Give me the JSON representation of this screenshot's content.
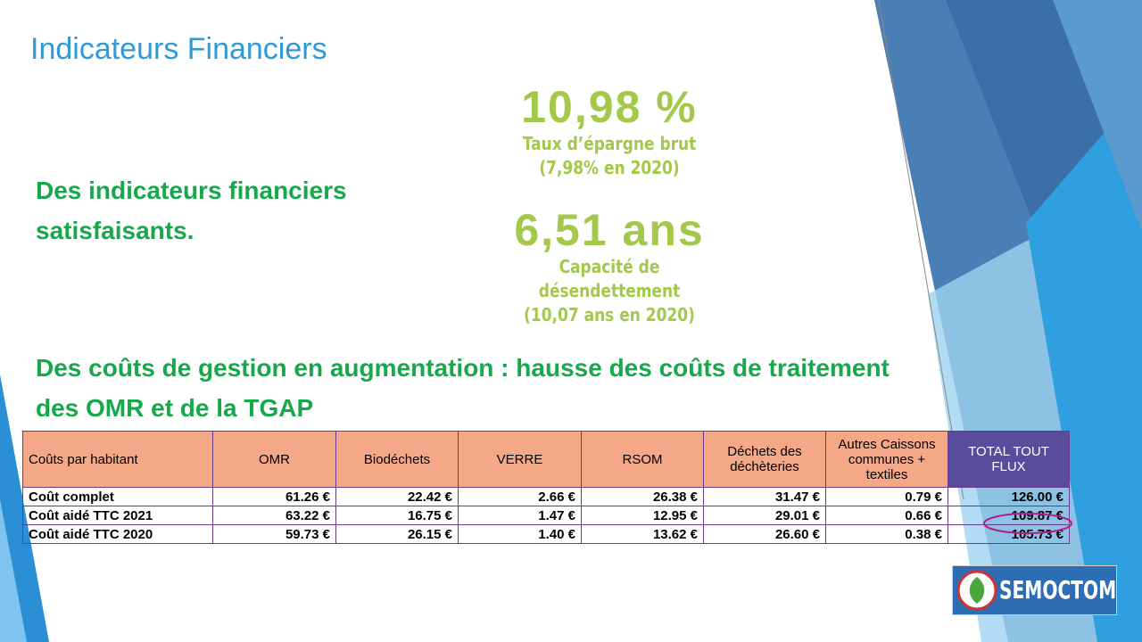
{
  "title": "Indicateurs Financiers",
  "stats": [
    {
      "value": "10,98 %",
      "label": "Taux d’épargne brut",
      "note": "(7,98% en 2020)"
    },
    {
      "value": "6,51 ans",
      "label": "Capacité de désendettement",
      "note": "(10,07 ans en 2020)"
    }
  ],
  "bullets": [
    "Des indicateurs financiers satisfaisants.",
    "Des coûts de gestion en augmentation : hausse des coûts de traitement des OMR et de la TGAP"
  ],
  "table": {
    "header": [
      "Coûts par habitant",
      "OMR",
      "Biodéchets",
      "VERRE",
      "RSOM",
      "Déchets des déchèteries",
      "Autres Caissons communes + textiles",
      "TOTAL TOUT FLUX"
    ],
    "rows": [
      [
        "Coût complet",
        "61.26 €",
        "22.42 €",
        "2.66 €",
        "26.38 €",
        "31.47 €",
        "0.79 €",
        "126.00 €"
      ],
      [
        "Coût aidé TTC 2021",
        "63.22 €",
        "16.75 €",
        "1.47 €",
        "12.95 €",
        "29.01 €",
        "0.66 €",
        "109.87 €"
      ],
      [
        "Coût aidé TTC 2020",
        "59.73 €",
        "26.15 €",
        "1.40 €",
        "13.62 €",
        "26.60 €",
        "0.38 €",
        "105.73 €"
      ]
    ]
  },
  "logo": "SEMOCTOM"
}
